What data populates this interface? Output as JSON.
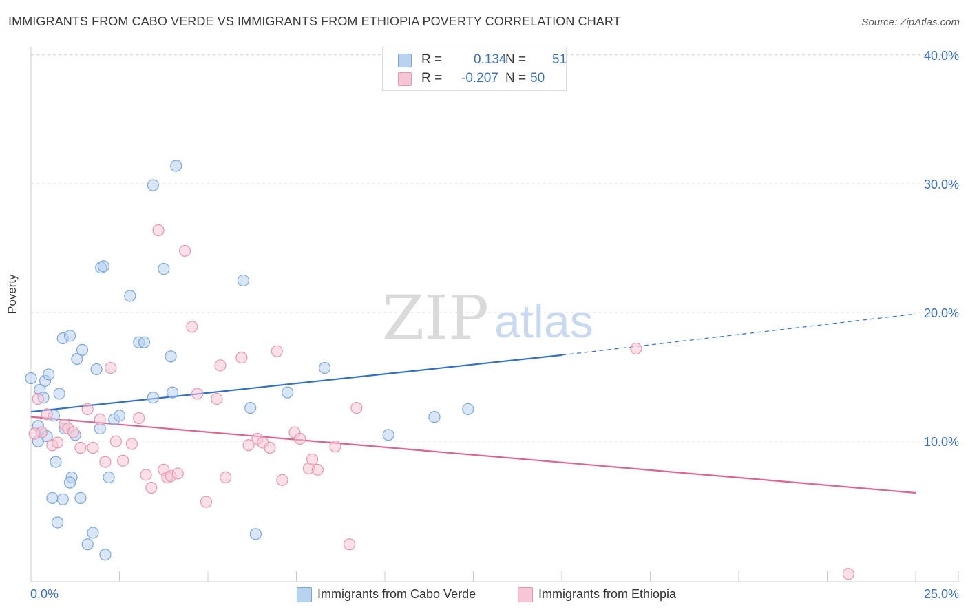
{
  "header": {
    "title": "IMMIGRANTS FROM CABO VERDE VS IMMIGRANTS FROM ETHIOPIA POVERTY CORRELATION CHART",
    "source": "Source: ZipAtlas.com"
  },
  "watermark": {
    "zip": "ZIP",
    "atlas": "atlas"
  },
  "legend_top": {
    "rows": [
      {
        "r_label": "R =",
        "r_value": "0.134",
        "n_label": "N =",
        "n_value": "51"
      },
      {
        "r_label": "R =",
        "r_value": "-0.207",
        "n_label": "N =",
        "n_value": "50"
      }
    ]
  },
  "colors": {
    "blue_fill": "#b8d2f0",
    "blue_stroke": "#7aa6dc",
    "blue_line": "#2f6fce",
    "pink_fill": "#f7c6d4",
    "pink_stroke": "#e895b0",
    "pink_line": "#e0628e",
    "axis_text": "#3a6fc4",
    "grid": "#dddddd"
  },
  "chart_data": {
    "type": "scatter",
    "title": "IMMIGRANTS FROM CABO VERDE VS IMMIGRANTS FROM ETHIOPIA POVERTY CORRELATION CHART",
    "xlabel": "",
    "ylabel": "Poverty",
    "xlim": [
      0,
      25
    ],
    "ylim": [
      0,
      40
    ],
    "x_tick_labels": [
      "0.0%",
      "25.0%"
    ],
    "y_ticks": [
      10,
      20,
      30,
      40
    ],
    "y_tick_labels": [
      "10.0%",
      "20.0%",
      "30.0%",
      "40.0%"
    ],
    "grid": true,
    "series": [
      {
        "name": "Immigrants from Cabo Verde",
        "color": "blue",
        "r": 0.134,
        "n": 51,
        "trend": {
          "x0": 0,
          "y0": 13.2,
          "x1": 15,
          "y1": 17.6,
          "dash_x1": 25,
          "dash_y1": 20.8
        },
        "points": [
          [
            0.0,
            15.8
          ],
          [
            0.25,
            14.9
          ],
          [
            0.35,
            14.3
          ],
          [
            0.4,
            15.6
          ],
          [
            0.5,
            16.1
          ],
          [
            0.2,
            12.1
          ],
          [
            0.3,
            11.6
          ],
          [
            0.2,
            10.9
          ],
          [
            0.45,
            11.3
          ],
          [
            0.65,
            12.9
          ],
          [
            0.8,
            14.6
          ],
          [
            0.9,
            18.9
          ],
          [
            1.1,
            19.1
          ],
          [
            1.3,
            17.3
          ],
          [
            1.45,
            18.0
          ],
          [
            0.95,
            11.9
          ],
          [
            1.25,
            11.4
          ],
          [
            0.7,
            9.3
          ],
          [
            1.15,
            8.1
          ],
          [
            1.1,
            7.7
          ],
          [
            0.6,
            6.5
          ],
          [
            0.9,
            6.4
          ],
          [
            1.4,
            6.5
          ],
          [
            0.75,
            4.6
          ],
          [
            1.75,
            3.8
          ],
          [
            1.6,
            2.9
          ],
          [
            2.1,
            2.1
          ],
          [
            1.85,
            16.5
          ],
          [
            1.95,
            11.9
          ],
          [
            2.2,
            8.1
          ],
          [
            2.35,
            12.6
          ],
          [
            2.5,
            12.9
          ],
          [
            1.98,
            24.4
          ],
          [
            2.05,
            24.5
          ],
          [
            2.8,
            22.2
          ],
          [
            3.05,
            18.6
          ],
          [
            3.2,
            18.6
          ],
          [
            3.45,
            14.3
          ],
          [
            3.45,
            30.8
          ],
          [
            3.75,
            24.3
          ],
          [
            3.95,
            17.5
          ],
          [
            4.0,
            14.7
          ],
          [
            4.1,
            32.3
          ],
          [
            6.0,
            23.4
          ],
          [
            6.2,
            13.5
          ],
          [
            6.35,
            3.7
          ],
          [
            7.25,
            14.7
          ],
          [
            8.3,
            16.6
          ],
          [
            10.1,
            11.4
          ],
          [
            11.4,
            12.8
          ],
          [
            12.35,
            13.4
          ]
        ]
      },
      {
        "name": "Immigrants from Ethiopia",
        "color": "pink",
        "r": -0.207,
        "n": 50,
        "trend": {
          "x0": 0,
          "y0": 12.8,
          "x1": 25,
          "y1": 6.9
        },
        "points": [
          [
            0.2,
            14.2
          ],
          [
            0.3,
            11.6
          ],
          [
            0.45,
            13.0
          ],
          [
            0.6,
            10.6
          ],
          [
            0.75,
            10.8
          ],
          [
            0.95,
            12.2
          ],
          [
            1.05,
            11.9
          ],
          [
            1.2,
            11.6
          ],
          [
            1.4,
            10.4
          ],
          [
            1.6,
            13.4
          ],
          [
            1.75,
            10.4
          ],
          [
            1.95,
            12.6
          ],
          [
            2.1,
            9.3
          ],
          [
            2.25,
            16.6
          ],
          [
            2.4,
            10.9
          ],
          [
            2.6,
            9.4
          ],
          [
            2.85,
            10.7
          ],
          [
            3.05,
            12.7
          ],
          [
            3.25,
            8.3
          ],
          [
            3.4,
            7.3
          ],
          [
            3.6,
            27.3
          ],
          [
            3.75,
            8.7
          ],
          [
            3.85,
            8.1
          ],
          [
            3.95,
            8.2
          ],
          [
            4.15,
            8.4
          ],
          [
            4.35,
            25.7
          ],
          [
            4.55,
            19.8
          ],
          [
            4.7,
            14.6
          ],
          [
            4.95,
            6.2
          ],
          [
            5.25,
            14.2
          ],
          [
            5.35,
            16.8
          ],
          [
            5.5,
            8.1
          ],
          [
            5.95,
            17.4
          ],
          [
            6.15,
            10.6
          ],
          [
            6.4,
            11.1
          ],
          [
            6.55,
            10.8
          ],
          [
            6.75,
            10.4
          ],
          [
            6.95,
            17.9
          ],
          [
            7.1,
            7.9
          ],
          [
            7.45,
            11.6
          ],
          [
            7.6,
            11.1
          ],
          [
            7.85,
            8.8
          ],
          [
            8.1,
            8.7
          ],
          [
            7.95,
            9.5
          ],
          [
            8.6,
            10.5
          ],
          [
            9.0,
            2.9
          ],
          [
            9.2,
            13.5
          ],
          [
            17.1,
            18.1
          ],
          [
            23.1,
            0.6
          ],
          [
            0.1,
            11.5
          ]
        ]
      }
    ]
  },
  "legend_bottom": {
    "items": [
      {
        "label": "Immigrants from Cabo Verde"
      },
      {
        "label": "Immigrants from Ethiopia"
      }
    ]
  }
}
